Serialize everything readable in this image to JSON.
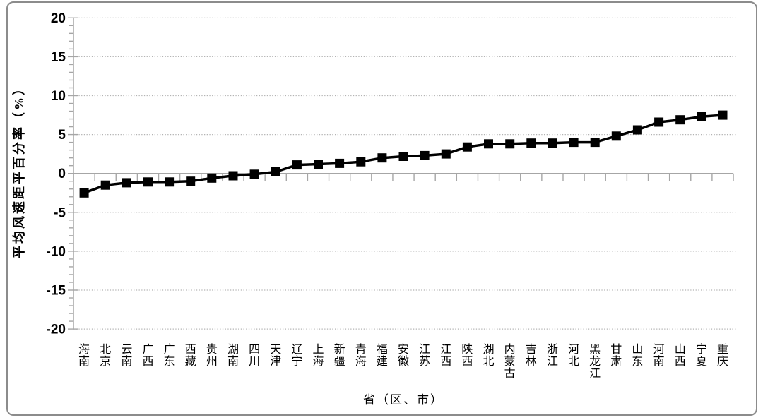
{
  "chart_data": {
    "type": "line",
    "title": "",
    "xlabel": "省（区、市）",
    "ylabel": "平均风速距平百分率（%）",
    "categories": [
      "海南",
      "北京",
      "云南",
      "广西",
      "广东",
      "西藏",
      "贵州",
      "湖南",
      "四川",
      "天津",
      "辽宁",
      "上海",
      "新疆",
      "青海",
      "福建",
      "安徽",
      "江苏",
      "江西",
      "陕西",
      "湖北",
      "内蒙古",
      "吉林",
      "浙江",
      "河北",
      "黑龙江",
      "甘肃",
      "山东",
      "河南",
      "山西",
      "宁夏",
      "重庆"
    ],
    "values": [
      -2.5,
      -1.5,
      -1.2,
      -1.1,
      -1.1,
      -1.0,
      -0.6,
      -0.3,
      -0.1,
      0.2,
      1.1,
      1.2,
      1.3,
      1.5,
      2.0,
      2.2,
      2.3,
      2.5,
      3.4,
      3.8,
      3.8,
      3.9,
      3.9,
      4.0,
      4.0,
      4.8,
      5.6,
      6.6,
      6.9,
      7.3,
      7.5
    ],
    "ylim": [
      -20,
      20
    ],
    "ytick_step": 5,
    "yticks": [
      -20,
      -15,
      -10,
      -5,
      0,
      5,
      10,
      15,
      20
    ],
    "grid": "horizontal-dotted",
    "legend": "none",
    "marker": "square",
    "colors": {
      "series": "#000000",
      "axis": "#a6a6a6",
      "gridline": "#b3b3b3",
      "text": "#000000",
      "border": "#8c8c8c",
      "background": "#ffffff"
    }
  }
}
